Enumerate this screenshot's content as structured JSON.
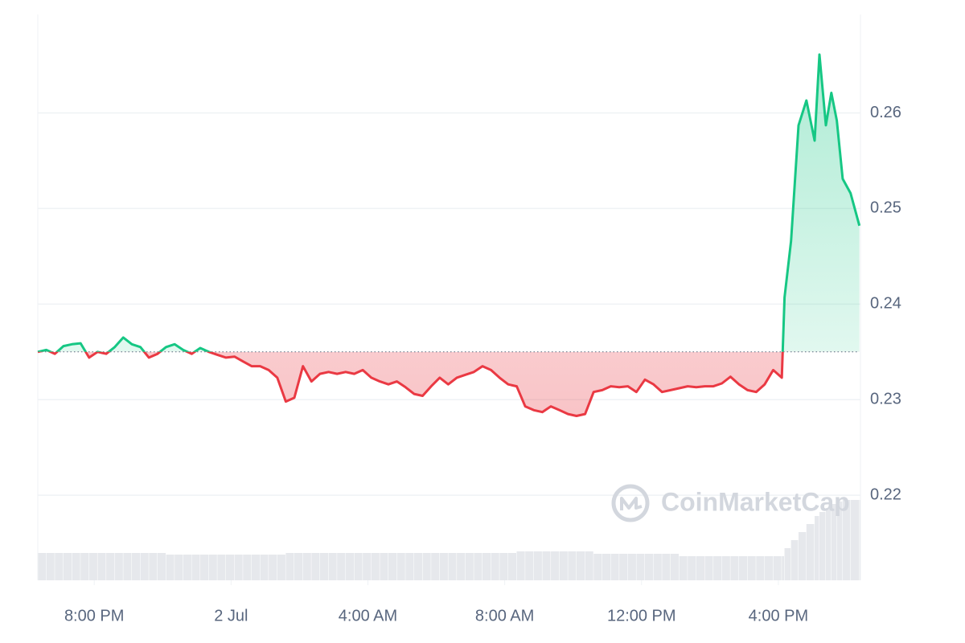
{
  "chart_data": {
    "type": "line",
    "watermark": "CoinMarketCap",
    "baseline": 0.235,
    "up_color": "#16c784",
    "down_color": "#ea3943",
    "volume_color": "#e6e8ec",
    "grid": true,
    "xlim": [
      18.35,
      42.4
    ],
    "xticks": [
      {
        "value": 20,
        "label": "8:00 PM"
      },
      {
        "value": 24,
        "label": "2 Jul"
      },
      {
        "value": 28,
        "label": "4:00 AM"
      },
      {
        "value": 32,
        "label": "8:00 AM"
      },
      {
        "value": 36,
        "label": "12:00 PM"
      },
      {
        "value": 40,
        "label": "4:00 PM"
      }
    ],
    "ylim": [
      0.2111,
      0.2703
    ],
    "yticks": [
      0.22,
      0.23,
      0.24,
      0.25,
      0.26
    ],
    "x": [
      18.35,
      18.6,
      18.85,
      19.1,
      19.35,
      19.6,
      19.85,
      20.1,
      20.35,
      20.6,
      20.85,
      21.1,
      21.35,
      21.6,
      21.85,
      22.1,
      22.35,
      22.6,
      22.85,
      23.1,
      23.35,
      23.6,
      23.85,
      24.1,
      24.35,
      24.6,
      24.85,
      25.1,
      25.35,
      25.6,
      25.85,
      26.1,
      26.35,
      26.6,
      26.85,
      27.1,
      27.35,
      27.6,
      27.85,
      28.1,
      28.35,
      28.6,
      28.85,
      29.1,
      29.35,
      29.6,
      29.85,
      30.1,
      30.35,
      30.6,
      30.85,
      31.1,
      31.35,
      31.6,
      31.85,
      32.1,
      32.35,
      32.6,
      32.85,
      33.1,
      33.35,
      33.6,
      33.85,
      34.1,
      34.35,
      34.6,
      34.85,
      35.1,
      35.35,
      35.6,
      35.85,
      36.1,
      36.35,
      36.6,
      36.85,
      37.1,
      37.35,
      37.6,
      37.85,
      38.1,
      38.35,
      38.6,
      38.85,
      39.1,
      39.35,
      39.6,
      39.85,
      40.1,
      40.18,
      40.37,
      40.59,
      40.82,
      41.06,
      41.2,
      41.39,
      41.55,
      41.71,
      41.88,
      42.11,
      42.37
    ],
    "series": [
      {
        "name": "Price",
        "values": [
          0.235,
          0.2352,
          0.2348,
          0.2356,
          0.2358,
          0.2359,
          0.2344,
          0.235,
          0.2348,
          0.2355,
          0.2365,
          0.2358,
          0.2355,
          0.2344,
          0.2348,
          0.2355,
          0.2358,
          0.2352,
          0.2348,
          0.2354,
          0.235,
          0.2347,
          0.2344,
          0.2345,
          0.234,
          0.2335,
          0.2335,
          0.2331,
          0.2323,
          0.2298,
          0.2302,
          0.2335,
          0.2319,
          0.2327,
          0.2329,
          0.2327,
          0.2329,
          0.2327,
          0.2331,
          0.2323,
          0.2319,
          0.2316,
          0.2319,
          0.2313,
          0.2306,
          0.2304,
          0.2314,
          0.2323,
          0.2316,
          0.2323,
          0.2326,
          0.2329,
          0.2335,
          0.2331,
          0.2323,
          0.2316,
          0.2314,
          0.2293,
          0.2289,
          0.2287,
          0.2293,
          0.2289,
          0.2285,
          0.2283,
          0.2285,
          0.2308,
          0.231,
          0.2314,
          0.2313,
          0.2314,
          0.2308,
          0.2321,
          0.2316,
          0.2308,
          0.231,
          0.2312,
          0.2314,
          0.2313,
          0.2314,
          0.2314,
          0.2317,
          0.2324,
          0.2316,
          0.231,
          0.2308,
          0.2316,
          0.2331,
          0.2323,
          0.2407,
          0.2466,
          0.2587,
          0.2613,
          0.2571,
          0.2661,
          0.2587,
          0.2621,
          0.2592,
          0.2531,
          0.2516,
          0.2482
        ]
      },
      {
        "name": "Volume",
        "values": [
          34,
          34,
          34,
          34,
          34,
          34,
          34,
          34,
          34,
          34,
          34,
          34,
          34,
          34,
          34,
          32,
          32,
          32,
          32,
          32,
          32,
          32,
          32,
          32,
          32,
          32,
          32,
          32,
          32,
          34,
          34,
          34,
          34,
          34,
          34,
          34,
          34,
          34,
          34,
          34,
          34,
          34,
          34,
          34,
          34,
          34,
          34,
          34,
          34,
          34,
          34,
          34,
          34,
          34,
          34,
          34,
          36,
          36,
          36,
          36,
          36,
          36,
          36,
          36,
          36,
          33,
          33,
          33,
          33,
          33,
          33,
          33,
          33,
          33,
          33,
          30,
          30,
          30,
          30,
          30,
          30,
          30,
          30,
          30,
          30,
          30,
          30,
          30,
          40,
          50,
          60,
          70,
          80,
          85,
          90,
          95,
          98,
          100,
          100,
          100
        ]
      }
    ]
  }
}
